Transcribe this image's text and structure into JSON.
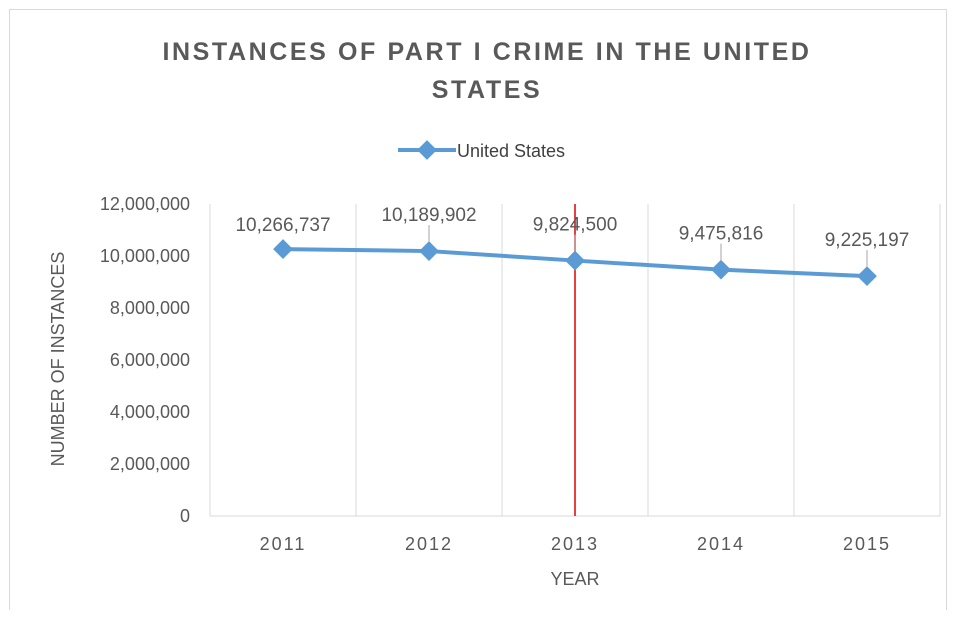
{
  "chart_data": {
    "type": "line",
    "title_lines": [
      "INSTANCES OF PART I CRIME IN THE UNITED",
      "STATES"
    ],
    "xlabel": "YEAR",
    "ylabel": "NUMBER OF INSTANCES",
    "categories": [
      "2011",
      "2012",
      "2013",
      "2014",
      "2015"
    ],
    "series": [
      {
        "name": "United States",
        "values": [
          10266737,
          10189902,
          9824500,
          9475816,
          9225197
        ],
        "labels": [
          "10,266,737",
          "10,189,902",
          "9,824,500",
          "9,475,816",
          "9,225,197"
        ]
      }
    ],
    "ylim": [
      0,
      12000000
    ],
    "yticks": [
      0,
      2000000,
      4000000,
      6000000,
      8000000,
      10000000,
      12000000
    ],
    "ytick_labels": [
      "0",
      "2,000,000",
      "4,000,000",
      "6,000,000",
      "8,000,000",
      "10,000,000",
      "12,000,000"
    ],
    "grid": "vertical",
    "legend_position": "top",
    "marker_line_x": 2.5,
    "colors": {
      "series": "#5b9bd5",
      "marker_line": "#e00000",
      "grid": "#d9d9d9",
      "text": "#595959"
    }
  }
}
